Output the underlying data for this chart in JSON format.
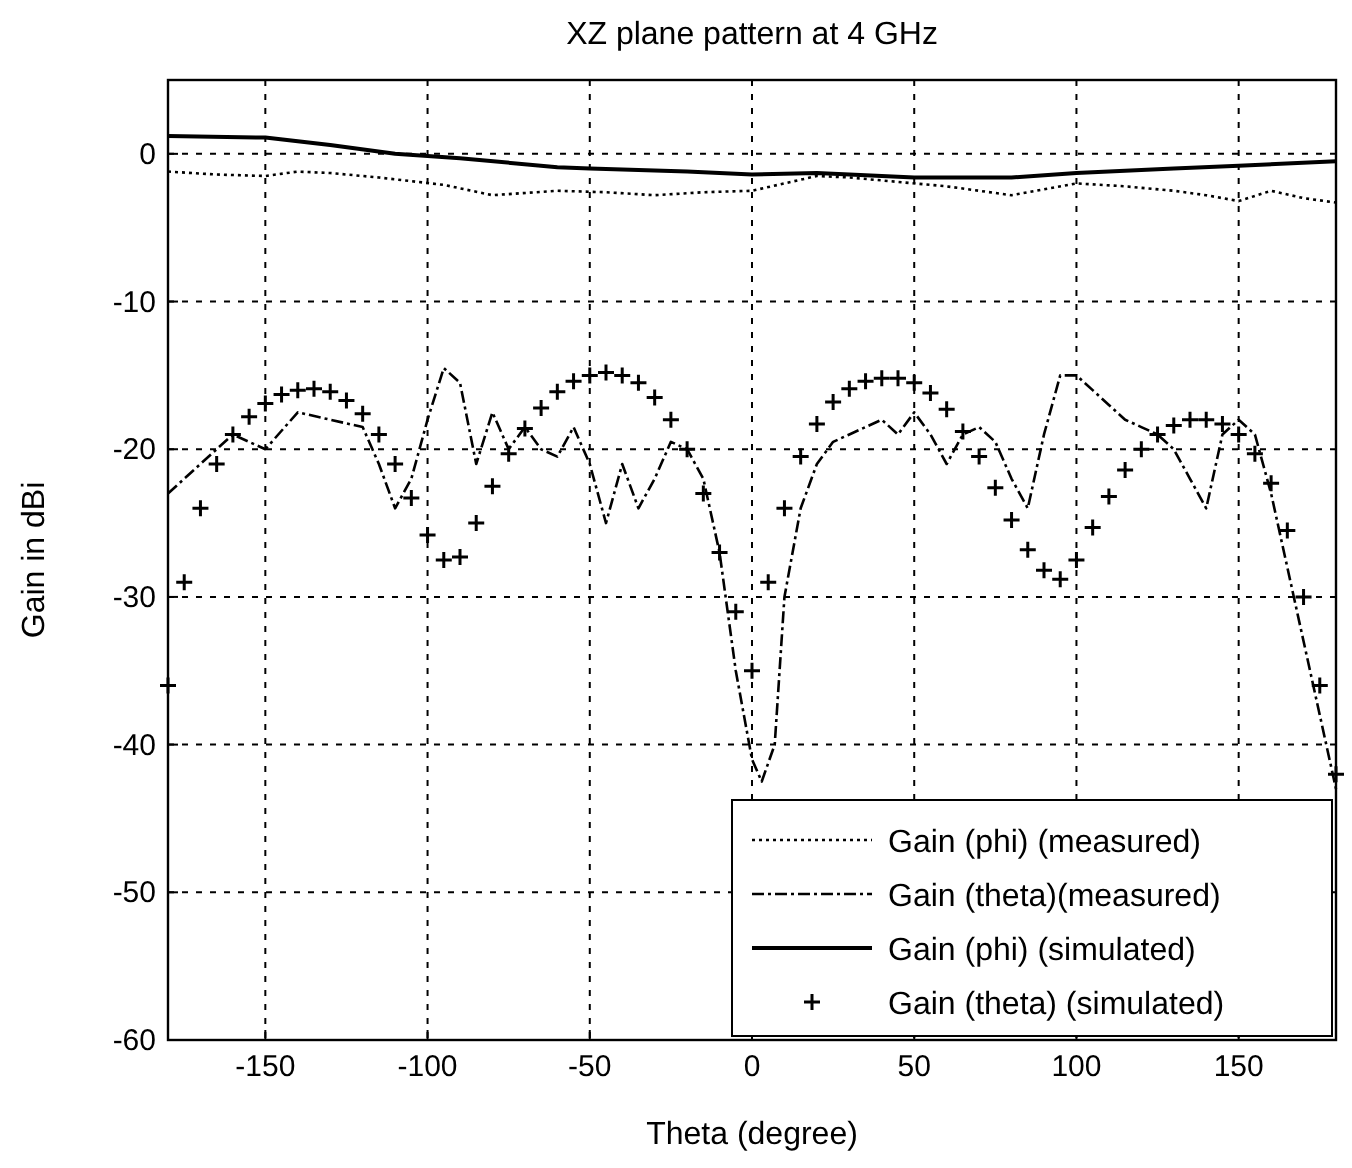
{
  "chart_data": {
    "type": "line",
    "title": "XZ plane pattern at 4 GHz",
    "xlabel": "Theta (degree)",
    "ylabel": "Gain in dBi",
    "xlim": [
      -180,
      180
    ],
    "ylim": [
      -60,
      5
    ],
    "xticks": [
      -150,
      -100,
      -50,
      0,
      50,
      100,
      150
    ],
    "yticks": [
      -60,
      -50,
      -40,
      -30,
      -20,
      -10,
      0
    ],
    "grid": true,
    "legend": "bottom right",
    "series": [
      {
        "name": "Gain (phi) (measured)",
        "color": "#000000",
        "line_style": "dotted",
        "marker": "none",
        "x": [
          -180,
          -165,
          -150,
          -140,
          -130,
          -115,
          -95,
          -80,
          -60,
          -45,
          -30,
          -15,
          0,
          10,
          20,
          30,
          40,
          60,
          80,
          90,
          100,
          115,
          130,
          140,
          150,
          160,
          170,
          180
        ],
        "values": [
          -1.2,
          -1.4,
          -1.5,
          -1.2,
          -1.3,
          -1.6,
          -2.1,
          -2.8,
          -2.5,
          -2.6,
          -2.8,
          -2.6,
          -2.5,
          -2,
          -1.5,
          -1.6,
          -1.8,
          -2.2,
          -2.8,
          -2.4,
          -2,
          -2.2,
          -2.5,
          -2.8,
          -3.2,
          -2.5,
          -3,
          -3.3
        ]
      },
      {
        "name": "Gain (theta)(measured)",
        "color": "#000000",
        "line_style": "dashdot",
        "marker": "none",
        "x": [
          -180,
          -170,
          -160,
          -150,
          -140,
          -130,
          -120,
          -115,
          -110,
          -105,
          -100,
          -95,
          -90,
          -85,
          -80,
          -75,
          -70,
          -65,
          -60,
          -55,
          -50,
          -45,
          -40,
          -35,
          -30,
          -25,
          -20,
          -15,
          -10,
          -5,
          0,
          3,
          7,
          10,
          15,
          20,
          25,
          30,
          35,
          40,
          45,
          50,
          55,
          60,
          65,
          70,
          75,
          80,
          85,
          90,
          95,
          100,
          105,
          110,
          115,
          120,
          125,
          130,
          135,
          140,
          145,
          150,
          155,
          160,
          165,
          170,
          175,
          180
        ],
        "values": [
          -23,
          -21,
          -19,
          -20,
          -17.5,
          -18,
          -18.5,
          -21,
          -24,
          -22,
          -18,
          -14.5,
          -15.5,
          -21,
          -17.5,
          -20,
          -18.5,
          -20,
          -20.5,
          -18.5,
          -21,
          -25,
          -21,
          -24,
          -22,
          -19.5,
          -20,
          -22,
          -27,
          -35,
          -41,
          -42.5,
          -40,
          -30,
          -24,
          -21,
          -19.5,
          -19,
          -18.5,
          -18,
          -19,
          -17.5,
          -19,
          -21,
          -19,
          -18.5,
          -19.5,
          -22,
          -24,
          -19,
          -15,
          -15,
          -16,
          -17,
          -18,
          -18.5,
          -19,
          -20,
          -22,
          -24,
          -19,
          -18,
          -19,
          -23,
          -28,
          -33,
          -38,
          -43
        ]
      },
      {
        "name": "Gain (phi) (simulated)",
        "color": "#000000",
        "line_style": "solid",
        "marker": "none",
        "x": [
          -180,
          -150,
          -130,
          -110,
          -90,
          -60,
          -50,
          -20,
          0,
          20,
          50,
          80,
          100,
          130,
          150,
          180
        ],
        "values": [
          1.2,
          1.1,
          0.6,
          0,
          -0.3,
          -0.9,
          -1,
          -1.2,
          -1.4,
          -1.3,
          -1.6,
          -1.6,
          -1.3,
          -1,
          -0.8,
          -0.5
        ]
      },
      {
        "name": "Gain (theta) (simulated)",
        "type": "scatter",
        "color": "#000000",
        "marker": "cross",
        "x": [
          -180,
          -175,
          -170,
          -165,
          -160,
          -155,
          -150,
          -145,
          -140,
          -135,
          -130,
          -125,
          -120,
          -115,
          -110,
          -105,
          -100,
          -95,
          -90,
          -85,
          -80,
          -75,
          -70,
          -65,
          -60,
          -55,
          -50,
          -45,
          -40,
          -35,
          -30,
          -25,
          -20,
          -15,
          -10,
          -5,
          0,
          5,
          10,
          15,
          20,
          25,
          30,
          35,
          40,
          45,
          50,
          55,
          60,
          65,
          70,
          75,
          80,
          85,
          90,
          95,
          100,
          105,
          110,
          115,
          120,
          125,
          130,
          135,
          140,
          145,
          150,
          155,
          160,
          165,
          170,
          175,
          180
        ],
        "values": [
          -36,
          -29,
          -24,
          -21,
          -19,
          -17.8,
          -16.9,
          -16.3,
          -16,
          -15.9,
          -16.1,
          -16.7,
          -17.6,
          -19,
          -21,
          -23.3,
          -25.8,
          -27.5,
          -27.3,
          -25,
          -22.5,
          -20.3,
          -18.6,
          -17.2,
          -16.1,
          -15.4,
          -15,
          -14.8,
          -15,
          -15.5,
          -16.5,
          -18,
          -20,
          -23,
          -27,
          -31,
          -35,
          -29,
          -24,
          -20.5,
          -18.3,
          -16.8,
          -15.9,
          -15.4,
          -15.2,
          -15.2,
          -15.5,
          -16.2,
          -17.3,
          -18.8,
          -20.5,
          -22.6,
          -24.8,
          -26.8,
          -28.2,
          -28.8,
          -27.5,
          -25.3,
          -23.2,
          -21.4,
          -20,
          -19,
          -18.4,
          -18,
          -18,
          -18.3,
          -19,
          -20.3,
          -22.3,
          -25.5,
          -30,
          -36,
          -42
        ]
      }
    ]
  }
}
